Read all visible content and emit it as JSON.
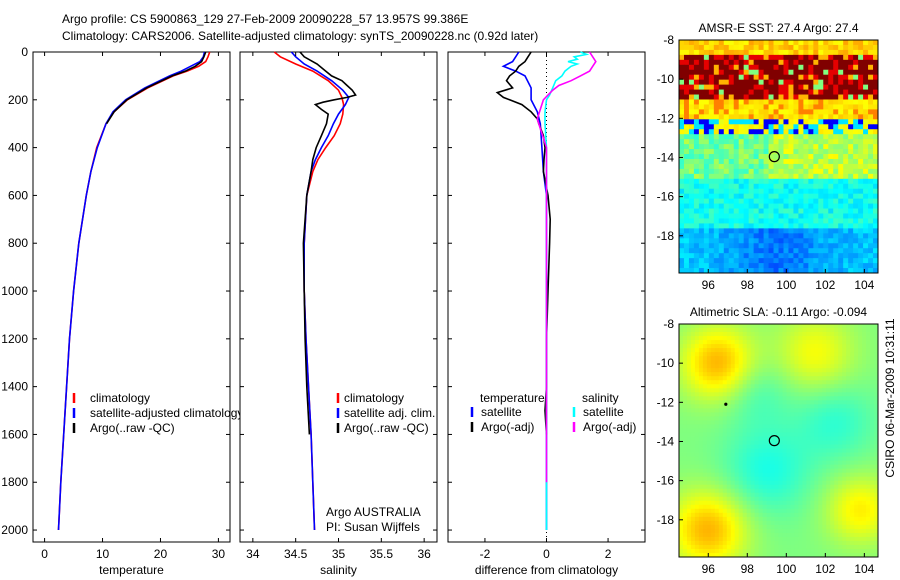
{
  "header": {
    "line1": "Argo profile: CS 5900863_129 27-Feb-2009 20090228_57 13.957S 99.386E",
    "line2": "Climatology: CARS2006. Satellite-adjusted climatology: synTS_20090228.nc (0.92d later)"
  },
  "side_stamp": "CSIRO 06-Mar-2009 10:31:11",
  "colors": {
    "clim": "#ff0000",
    "sat": "#0000ff",
    "argo": "#000000",
    "sat_sal": "#00ffff",
    "argo_sal": "#ff00ff"
  },
  "chart_data": [
    {
      "type": "line",
      "id": "temperature",
      "xlabel": "temperature",
      "xlim": [
        -2,
        32
      ],
      "ylim": [
        2050,
        0
      ],
      "xticks": [
        0,
        10,
        20,
        30
      ],
      "xtick_labels": [
        "0",
        "10",
        "20",
        "30"
      ],
      "yticks": [
        0,
        200,
        400,
        600,
        800,
        1000,
        1200,
        1400,
        1600,
        1800,
        2000
      ],
      "ytick_labels": [
        "0",
        "200",
        "400",
        "600",
        "800",
        "1000",
        "1200",
        "1400",
        "1600",
        "1800",
        "2000"
      ],
      "legend": [
        "climatology",
        "satellite-adjusted climatology",
        "Argo(..raw -QC)"
      ],
      "series": [
        {
          "name": "climatology",
          "color": "#ff0000",
          "depth": [
            0,
            20,
            40,
            60,
            80,
            100,
            150,
            200,
            250,
            300,
            400,
            500,
            600,
            800,
            1000,
            1200,
            1400,
            1600,
            1800,
            2000
          ],
          "values": [
            28.5,
            28.2,
            27.8,
            26.6,
            24.6,
            22.2,
            17.8,
            14.3,
            12.0,
            10.6,
            9.0,
            8.0,
            7.2,
            5.9,
            5.0,
            4.3,
            3.8,
            3.3,
            2.8,
            2.4
          ]
        },
        {
          "name": "satellite-adjusted climatology",
          "color": "#0000ff",
          "depth": [
            0,
            20,
            40,
            60,
            80,
            100,
            150,
            200,
            250,
            300,
            400,
            500,
            600,
            800,
            1000,
            1200,
            1400,
            1600,
            1800,
            2000
          ],
          "values": [
            27.6,
            27.4,
            26.8,
            25.2,
            23.6,
            21.6,
            17.3,
            14.0,
            11.8,
            10.6,
            9.1,
            8.0,
            7.2,
            5.9,
            5.0,
            4.3,
            3.8,
            3.3,
            2.8,
            2.4
          ]
        },
        {
          "name": "Argo(..raw -QC)",
          "color": "#000000",
          "depth": [
            0,
            20,
            40,
            60,
            80,
            100,
            150,
            200,
            250,
            300
          ],
          "values": [
            27.8,
            27.5,
            27.1,
            26.0,
            24.3,
            22.0,
            17.6,
            14.2,
            12.0,
            10.7
          ]
        }
      ]
    },
    {
      "type": "line",
      "id": "salinity",
      "xlabel": "salinity",
      "xlim": [
        33.85,
        36.15
      ],
      "ylim": [
        2050,
        0
      ],
      "xticks": [
        34,
        34.5,
        35,
        35.5,
        36
      ],
      "xtick_labels": [
        "34",
        "34.5",
        "35",
        "35.5",
        "36"
      ],
      "legend": [
        "climatology",
        "satellite adj. clim.",
        "Argo(..raw -QC)"
      ],
      "annotations": [
        "Argo AUSTRALIA",
        "PI: Susan Wijffels"
      ],
      "series": [
        {
          "name": "climatology",
          "color": "#ff0000",
          "depth": [
            0,
            20,
            50,
            80,
            120,
            160,
            190,
            220,
            260,
            300,
            350,
            400,
            450,
            500,
            600,
            800,
            1000,
            1200,
            1400,
            1600,
            1800,
            2000
          ],
          "values": [
            34.25,
            34.32,
            34.5,
            34.7,
            34.88,
            35.0,
            35.04,
            35.06,
            35.05,
            35.02,
            34.95,
            34.85,
            34.76,
            34.7,
            34.63,
            34.6,
            34.6,
            34.62,
            34.65,
            34.68,
            34.7,
            34.72
          ]
        },
        {
          "name": "satellite adj. clim.",
          "color": "#0000ff",
          "depth": [
            0,
            20,
            50,
            80,
            120,
            160,
            190,
            220,
            260,
            300,
            350,
            400,
            450,
            500,
            600,
            800,
            1000,
            1200,
            1400,
            1600,
            1800,
            2000
          ],
          "values": [
            34.45,
            34.5,
            34.6,
            34.75,
            34.92,
            35.05,
            35.12,
            35.08,
            35.0,
            34.94,
            34.88,
            34.8,
            34.73,
            34.68,
            34.63,
            34.6,
            34.6,
            34.62,
            34.65,
            34.68,
            34.7,
            34.72
          ]
        },
        {
          "name": "Argo(..raw -QC)",
          "color": "#000000",
          "depth": [
            0,
            20,
            50,
            80,
            100,
            120,
            140,
            160,
            180,
            190,
            200,
            210,
            220,
            240,
            260,
            300,
            350,
            400,
            450,
            500,
            600,
            800,
            1000,
            1200,
            1400,
            1600
          ],
          "values": [
            34.55,
            34.6,
            34.75,
            34.85,
            34.92,
            35.04,
            35.1,
            35.16,
            35.2,
            35.1,
            34.95,
            34.82,
            34.73,
            34.8,
            34.88,
            34.86,
            34.8,
            34.74,
            34.7,
            34.68,
            34.63,
            34.59,
            34.6,
            34.61,
            34.63,
            34.66
          ]
        }
      ]
    },
    {
      "type": "line",
      "id": "difference",
      "xlabel": "difference from climatology",
      "xlim": [
        -3.2,
        3.2
      ],
      "ylim": [
        2050,
        0
      ],
      "xticks": [
        -2,
        0,
        2
      ],
      "xtick_labels": [
        "-2",
        "0",
        "2"
      ],
      "legend_headers": [
        "temperature",
        "salinity"
      ],
      "legend": [
        "satellite",
        "Argo(-adj)",
        "satellite",
        "Argo(-adj)"
      ],
      "series": [
        {
          "name": "temperature satellite",
          "color": "#0000ff",
          "depth": [
            0,
            20,
            40,
            60,
            80,
            100,
            150,
            200,
            250,
            300,
            400,
            500,
            600,
            800,
            1000,
            1200,
            1400,
            1600,
            1800,
            2000
          ],
          "values": [
            -0.9,
            -1.0,
            -1.1,
            -1.4,
            -1.0,
            -0.7,
            -0.5,
            -0.5,
            -0.3,
            -0.2,
            -0.15,
            -0.1,
            0.0,
            0.0,
            0.0,
            0.0,
            0.0,
            0.0,
            0.0,
            0.0
          ]
        },
        {
          "name": "temperature Argo(-adj)",
          "color": "#000000",
          "depth": [
            0,
            20,
            40,
            60,
            80,
            100,
            120,
            150,
            170,
            190,
            200,
            220,
            250,
            280,
            300,
            350,
            400,
            450,
            500,
            600,
            700,
            800,
            1000,
            1200,
            1400,
            1500,
            1600
          ],
          "values": [
            -0.5,
            -0.6,
            -0.7,
            -0.9,
            -1.0,
            -1.2,
            -1.3,
            -1.1,
            -1.6,
            -1.4,
            -1.2,
            -0.8,
            -0.5,
            -0.3,
            -0.25,
            -0.1,
            -0.05,
            -0.08,
            -0.1,
            0.05,
            0.12,
            0.1,
            0.05,
            0.0,
            0.0,
            -0.05,
            0.0
          ]
        },
        {
          "name": "salinity satellite",
          "color": "#00ffff",
          "depth": [
            0,
            10,
            20,
            30,
            40,
            50,
            60,
            80,
            100,
            120,
            150,
            180,
            200,
            250,
            300,
            400,
            500,
            600,
            800,
            1000,
            1200,
            1400,
            1600,
            1800,
            2000
          ],
          "values": [
            1.1,
            1.3,
            0.9,
            1.0,
            0.7,
            1.0,
            0.8,
            0.6,
            0.5,
            0.3,
            0.2,
            0.1,
            0.0,
            -0.05,
            -0.05,
            0.0,
            0.0,
            0.0,
            0.0,
            0.0,
            0.0,
            0.0,
            0.0,
            0.0,
            0.0
          ]
        },
        {
          "name": "salinity Argo(-adj)",
          "color": "#ff00ff",
          "depth": [
            0,
            20,
            40,
            60,
            80,
            100,
            120,
            140,
            160,
            180,
            200,
            240,
            280,
            320,
            360,
            400,
            500,
            600,
            800,
            1000,
            1200,
            1400,
            1600,
            1800
          ],
          "values": [
            1.4,
            1.5,
            1.6,
            1.5,
            1.4,
            1.1,
            0.8,
            0.4,
            0.2,
            0.05,
            -0.1,
            -0.2,
            -0.3,
            -0.2,
            -0.1,
            0.0,
            0.0,
            0.0,
            0.0,
            0.0,
            0.0,
            0.0,
            0.0,
            0.0
          ]
        }
      ]
    },
    {
      "type": "heatmap",
      "id": "sst_map",
      "title": "AMSR-E SST: 27.4  Argo: 27.4",
      "xlim": [
        94.5,
        104.7
      ],
      "ylim": [
        -19.9,
        -8
      ],
      "xticks": [
        96,
        98,
        100,
        102,
        104
      ],
      "xtick_labels": [
        "96",
        "98",
        "100",
        "102",
        "104"
      ],
      "yticks": [
        -8,
        -10,
        -12,
        -14,
        -16,
        -18
      ],
      "ytick_labels": [
        "-8",
        "-10",
        "-12",
        "-14",
        "-16",
        "-18"
      ],
      "marker": {
        "lon": 99.386,
        "lat": -13.957
      },
      "field": [
        {
          "lat_above": -8.8,
          "value": 27.6
        },
        {
          "lat_above": -11.0,
          "value": 29.8
        },
        {
          "lat_above": -12.0,
          "value": 27.4
        },
        {
          "lat_above": -12.8,
          "value": 26.8
        },
        {
          "lat_above": -15.0,
          "value": 26.5
        },
        {
          "lat_above": -17.5,
          "value": 25.6
        },
        {
          "lat_above": -19.9,
          "value": 24.8
        }
      ]
    },
    {
      "type": "heatmap",
      "id": "sla_map",
      "title": "Altimetric SLA: -0.11  Argo: -0.094",
      "xlim": [
        94.5,
        104.7
      ],
      "ylim": [
        -19.9,
        -8
      ],
      "xticks": [
        96,
        98,
        100,
        102,
        104
      ],
      "xtick_labels": [
        "96",
        "98",
        "100",
        "102",
        "104"
      ],
      "yticks": [
        -8,
        -10,
        -12,
        -14,
        -16,
        -18
      ],
      "ytick_labels": [
        "-8",
        "-10",
        "-12",
        "-14",
        "-16",
        "-18"
      ],
      "marker": {
        "lon": 99.386,
        "lat": -13.957
      },
      "point": {
        "lon": 96.9,
        "lat": -12.1
      }
    }
  ]
}
